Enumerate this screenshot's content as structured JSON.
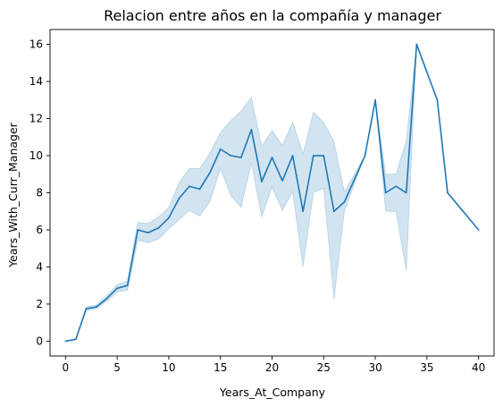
{
  "chart_data": {
    "type": "line",
    "title": "Relacion entre años en la compañía y manager",
    "xlabel": "Years_At_Company",
    "ylabel": "Years_With_Curr_Manager",
    "xlim": [
      -1.5,
      41.5
    ],
    "ylim": [
      -0.8,
      16.8
    ],
    "xticks": [
      0,
      5,
      10,
      15,
      20,
      25,
      30,
      35,
      40
    ],
    "yticks": [
      0,
      2,
      4,
      6,
      8,
      10,
      12,
      14,
      16
    ],
    "grid": false,
    "line_color": "#1f77b4",
    "band_color": "#1f77b4",
    "x": [
      0,
      1,
      2,
      3,
      4,
      5,
      6,
      7,
      8,
      9,
      10,
      11,
      12,
      13,
      14,
      15,
      16,
      17,
      18,
      19,
      20,
      21,
      22,
      23,
      24,
      25,
      26,
      27,
      29,
      30,
      31,
      32,
      33,
      34,
      36,
      37,
      40
    ],
    "y": [
      0,
      0.1,
      1.75,
      1.85,
      2.3,
      2.85,
      3.0,
      6.0,
      5.85,
      6.1,
      6.65,
      7.7,
      8.35,
      8.2,
      9.1,
      10.35,
      10.0,
      9.9,
      11.4,
      8.6,
      9.9,
      8.65,
      10.0,
      7.0,
      10.0,
      10.0,
      7.0,
      7.5,
      10.0,
      13.0,
      8.0,
      8.35,
      8.0,
      16.0,
      13.0,
      8.0,
      6.0
    ],
    "ci_lower": [
      0,
      0.1,
      1.65,
      1.75,
      2.15,
      2.65,
      2.75,
      5.45,
      5.3,
      5.5,
      6.05,
      6.55,
      7.05,
      6.75,
      7.55,
      9.3,
      7.85,
      7.2,
      9.6,
      6.7,
      8.3,
      7.05,
      8.05,
      4.0,
      8.0,
      8.25,
      2.25,
      7.0,
      10.0,
      13.0,
      7.0,
      7.0,
      3.8,
      16.0,
      13.0,
      8.0,
      6.0
    ],
    "ci_upper": [
      0,
      0.1,
      1.85,
      1.95,
      2.45,
      3.05,
      3.25,
      6.4,
      6.35,
      6.7,
      7.2,
      8.55,
      9.3,
      9.3,
      10.15,
      11.25,
      11.9,
      12.4,
      13.15,
      10.5,
      11.35,
      10.55,
      11.8,
      10.1,
      12.35,
      11.8,
      10.75,
      8.05,
      10.0,
      13.0,
      9.0,
      9.0,
      10.8,
      16.0,
      13.0,
      8.0,
      6.0
    ]
  }
}
